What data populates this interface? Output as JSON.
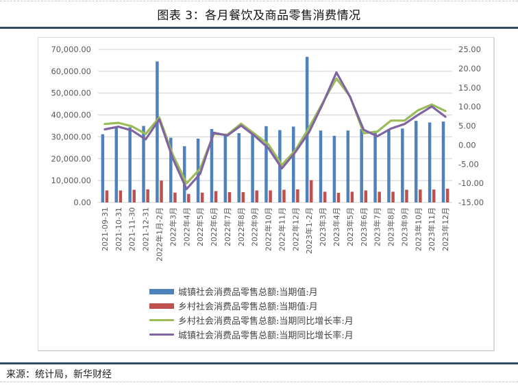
{
  "header": {
    "title": "图表 3：各月餐饮及商品零售消费情况"
  },
  "footer": {
    "source": "来源：统计局，新华财经"
  },
  "colors": {
    "urban_bar": "#4f81bd",
    "rural_bar": "#c0504d",
    "rural_growth_line": "#9bbb59",
    "urban_growth_line": "#8064a2",
    "rule": "#2e4b63",
    "grid": "#d9d9d9"
  },
  "legend": [
    {
      "label": "城镇社会消费品零售总额:当期值:月",
      "type": "bar",
      "color": "#4f81bd"
    },
    {
      "label": "乡村社会消费品零售总额:当期值:月",
      "type": "bar",
      "color": "#c0504d"
    },
    {
      "label": "乡村社会消费品零售总额:当期同比增长率:月",
      "type": "line",
      "color": "#9bbb59"
    },
    {
      "label": "城镇社会消费品零售总额:当期同比增长率:月",
      "type": "line",
      "color": "#8064a2"
    }
  ],
  "chart_data": {
    "type": "bar+line",
    "title": "图表 3：各月餐饮及商品零售消费情况",
    "xlabel": "",
    "ylabel": "",
    "ylim": [
      0,
      70000
    ],
    "y2lim": [
      -15,
      25
    ],
    "yticks": [
      "70,000.00",
      "60,000.00",
      "50,000.00",
      "40,000.00",
      "30,000.00",
      "20,000.00",
      "10,000.00",
      "0.00"
    ],
    "y2ticks": [
      "25.00",
      "20.00",
      "15.00",
      "10.00",
      "5.00",
      "0.00",
      "-5.00",
      "-10.00",
      "-15.00"
    ],
    "grid": true,
    "legend_position": "bottom",
    "categories": [
      "2021-09-31",
      "2021-10-31",
      "2021-11-30",
      "2021-12-31",
      "2022年1月-2月",
      "2022年3月",
      "2022年4月",
      "2022年5月",
      "2022年6月",
      "2022年7月",
      "2022年8月",
      "2022年9月",
      "2022年10月",
      "2022年11月",
      "2022年12月",
      "2023年1-2月",
      "2023年3月",
      "2023年4月",
      "2023年5月",
      "2023年6月",
      "2023年7月",
      "2023年8月",
      "2023年9月",
      "2023年10月",
      "2023年11月",
      "2023年12月"
    ],
    "series": [
      {
        "name": "城镇社会消费品零售总额:当期值:月",
        "type": "bar",
        "axis": "left",
        "values": [
          31200,
          34600,
          34400,
          35000,
          64500,
          29600,
          25700,
          29200,
          33600,
          30800,
          31700,
          32200,
          34900,
          33100,
          34700,
          66600,
          32900,
          30500,
          32900,
          33600,
          32800,
          33500,
          33800,
          37300,
          36600,
          37000
        ]
      },
      {
        "name": "乡村社会消费品零售总额:当期值:月",
        "type": "bar",
        "axis": "left",
        "values": [
          5500,
          5500,
          5800,
          6000,
          10000,
          4500,
          3900,
          4500,
          5200,
          4700,
          4700,
          5500,
          5500,
          5800,
          6000,
          10200,
          4900,
          4400,
          4900,
          5500,
          4900,
          4900,
          5800,
          5900,
          5900,
          6300
        ]
      },
      {
        "name": "乡村社会消费品零售总额:当期同比增长率:月",
        "type": "line",
        "axis": "right",
        "values": [
          5.5,
          5.8,
          4.9,
          2.9,
          7.2,
          -2.6,
          -10.0,
          -6.2,
          2.9,
          2.7,
          5.6,
          2.9,
          0.2,
          -5.2,
          -1.3,
          4.6,
          11.1,
          17.4,
          12.7,
          3.1,
          3.5,
          6.4,
          6.4,
          9.1,
          10.6,
          8.9
        ]
      },
      {
        "name": "城镇社会消费品零售总额:当期同比增长率:月",
        "type": "line",
        "axis": "right",
        "values": [
          4.1,
          4.8,
          3.8,
          1.5,
          6.7,
          -3.6,
          -11.5,
          -7.5,
          3.2,
          2.5,
          5.1,
          2.4,
          -0.8,
          -6.1,
          -1.8,
          3.4,
          10.8,
          19.0,
          12.6,
          4.0,
          2.3,
          4.3,
          5.5,
          7.9,
          10.1,
          7.4
        ]
      }
    ]
  }
}
